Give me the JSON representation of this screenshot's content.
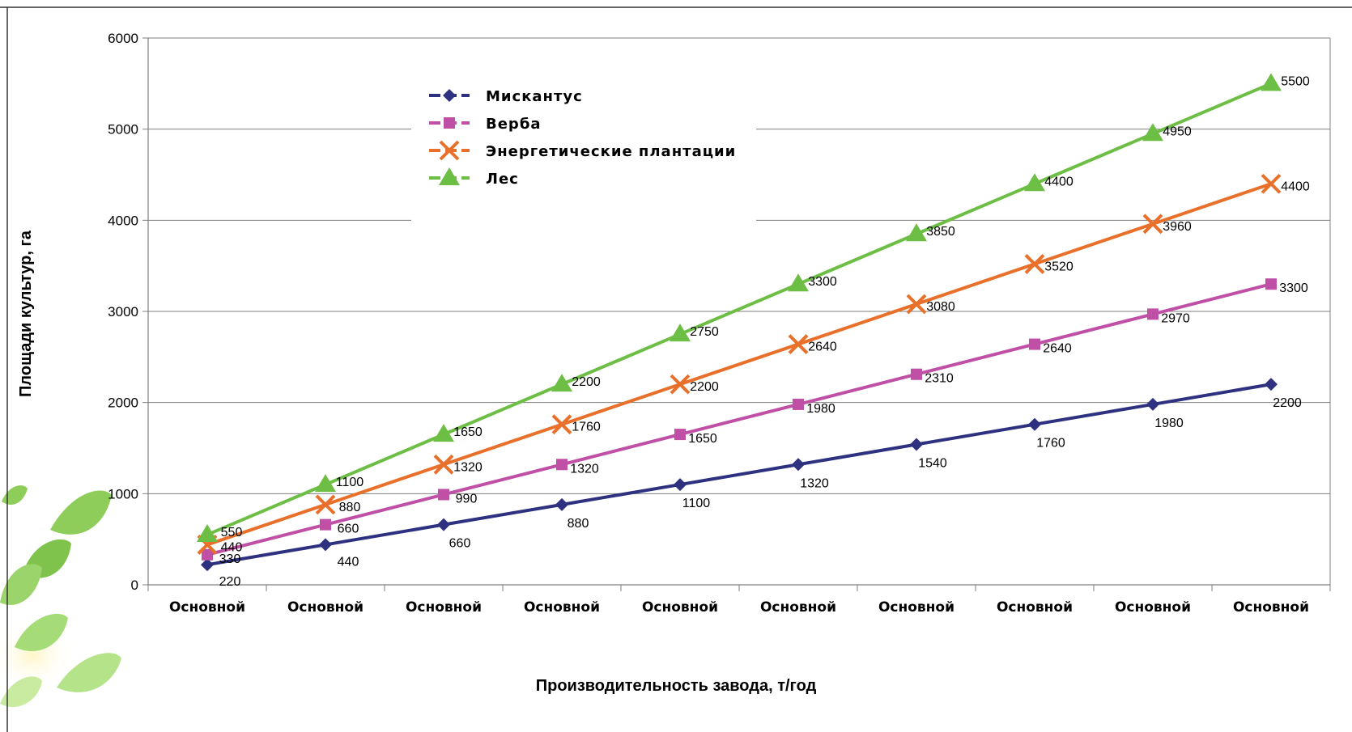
{
  "chart_data": {
    "type": "line",
    "categories": [
      "Основной",
      "Основной",
      "Основной",
      "Основной",
      "Основной",
      "Основной",
      "Основной",
      "Основной",
      "Основной",
      "Основной"
    ],
    "xlabel": "Производительность завода, т/год",
    "ylabel": "Площади культур, га",
    "ylim": [
      0,
      6000
    ],
    "yticks": [
      0,
      1000,
      2000,
      3000,
      4000,
      5000,
      6000
    ],
    "grid": true,
    "legend_position": "top-left",
    "series": [
      {
        "name": "Мискантус",
        "color": "#2E3180",
        "marker": "diamond",
        "values": [
          220,
          440,
          660,
          880,
          1100,
          1320,
          1540,
          1760,
          1980,
          2200
        ]
      },
      {
        "name": "Верба",
        "color": "#C04FA6",
        "marker": "square",
        "values": [
          330,
          660,
          990,
          1320,
          1650,
          1980,
          2310,
          2640,
          2970,
          3300
        ]
      },
      {
        "name": "Энергетические плантации",
        "color": "#E8702A",
        "marker": "x",
        "values": [
          440,
          880,
          1320,
          1760,
          2200,
          2640,
          3080,
          3520,
          3960,
          4400
        ]
      },
      {
        "name": "Лес",
        "color": "#6DBE45",
        "marker": "triangle",
        "values": [
          550,
          1100,
          1650,
          2200,
          2750,
          3300,
          3850,
          4400,
          4950,
          5500
        ]
      }
    ]
  }
}
